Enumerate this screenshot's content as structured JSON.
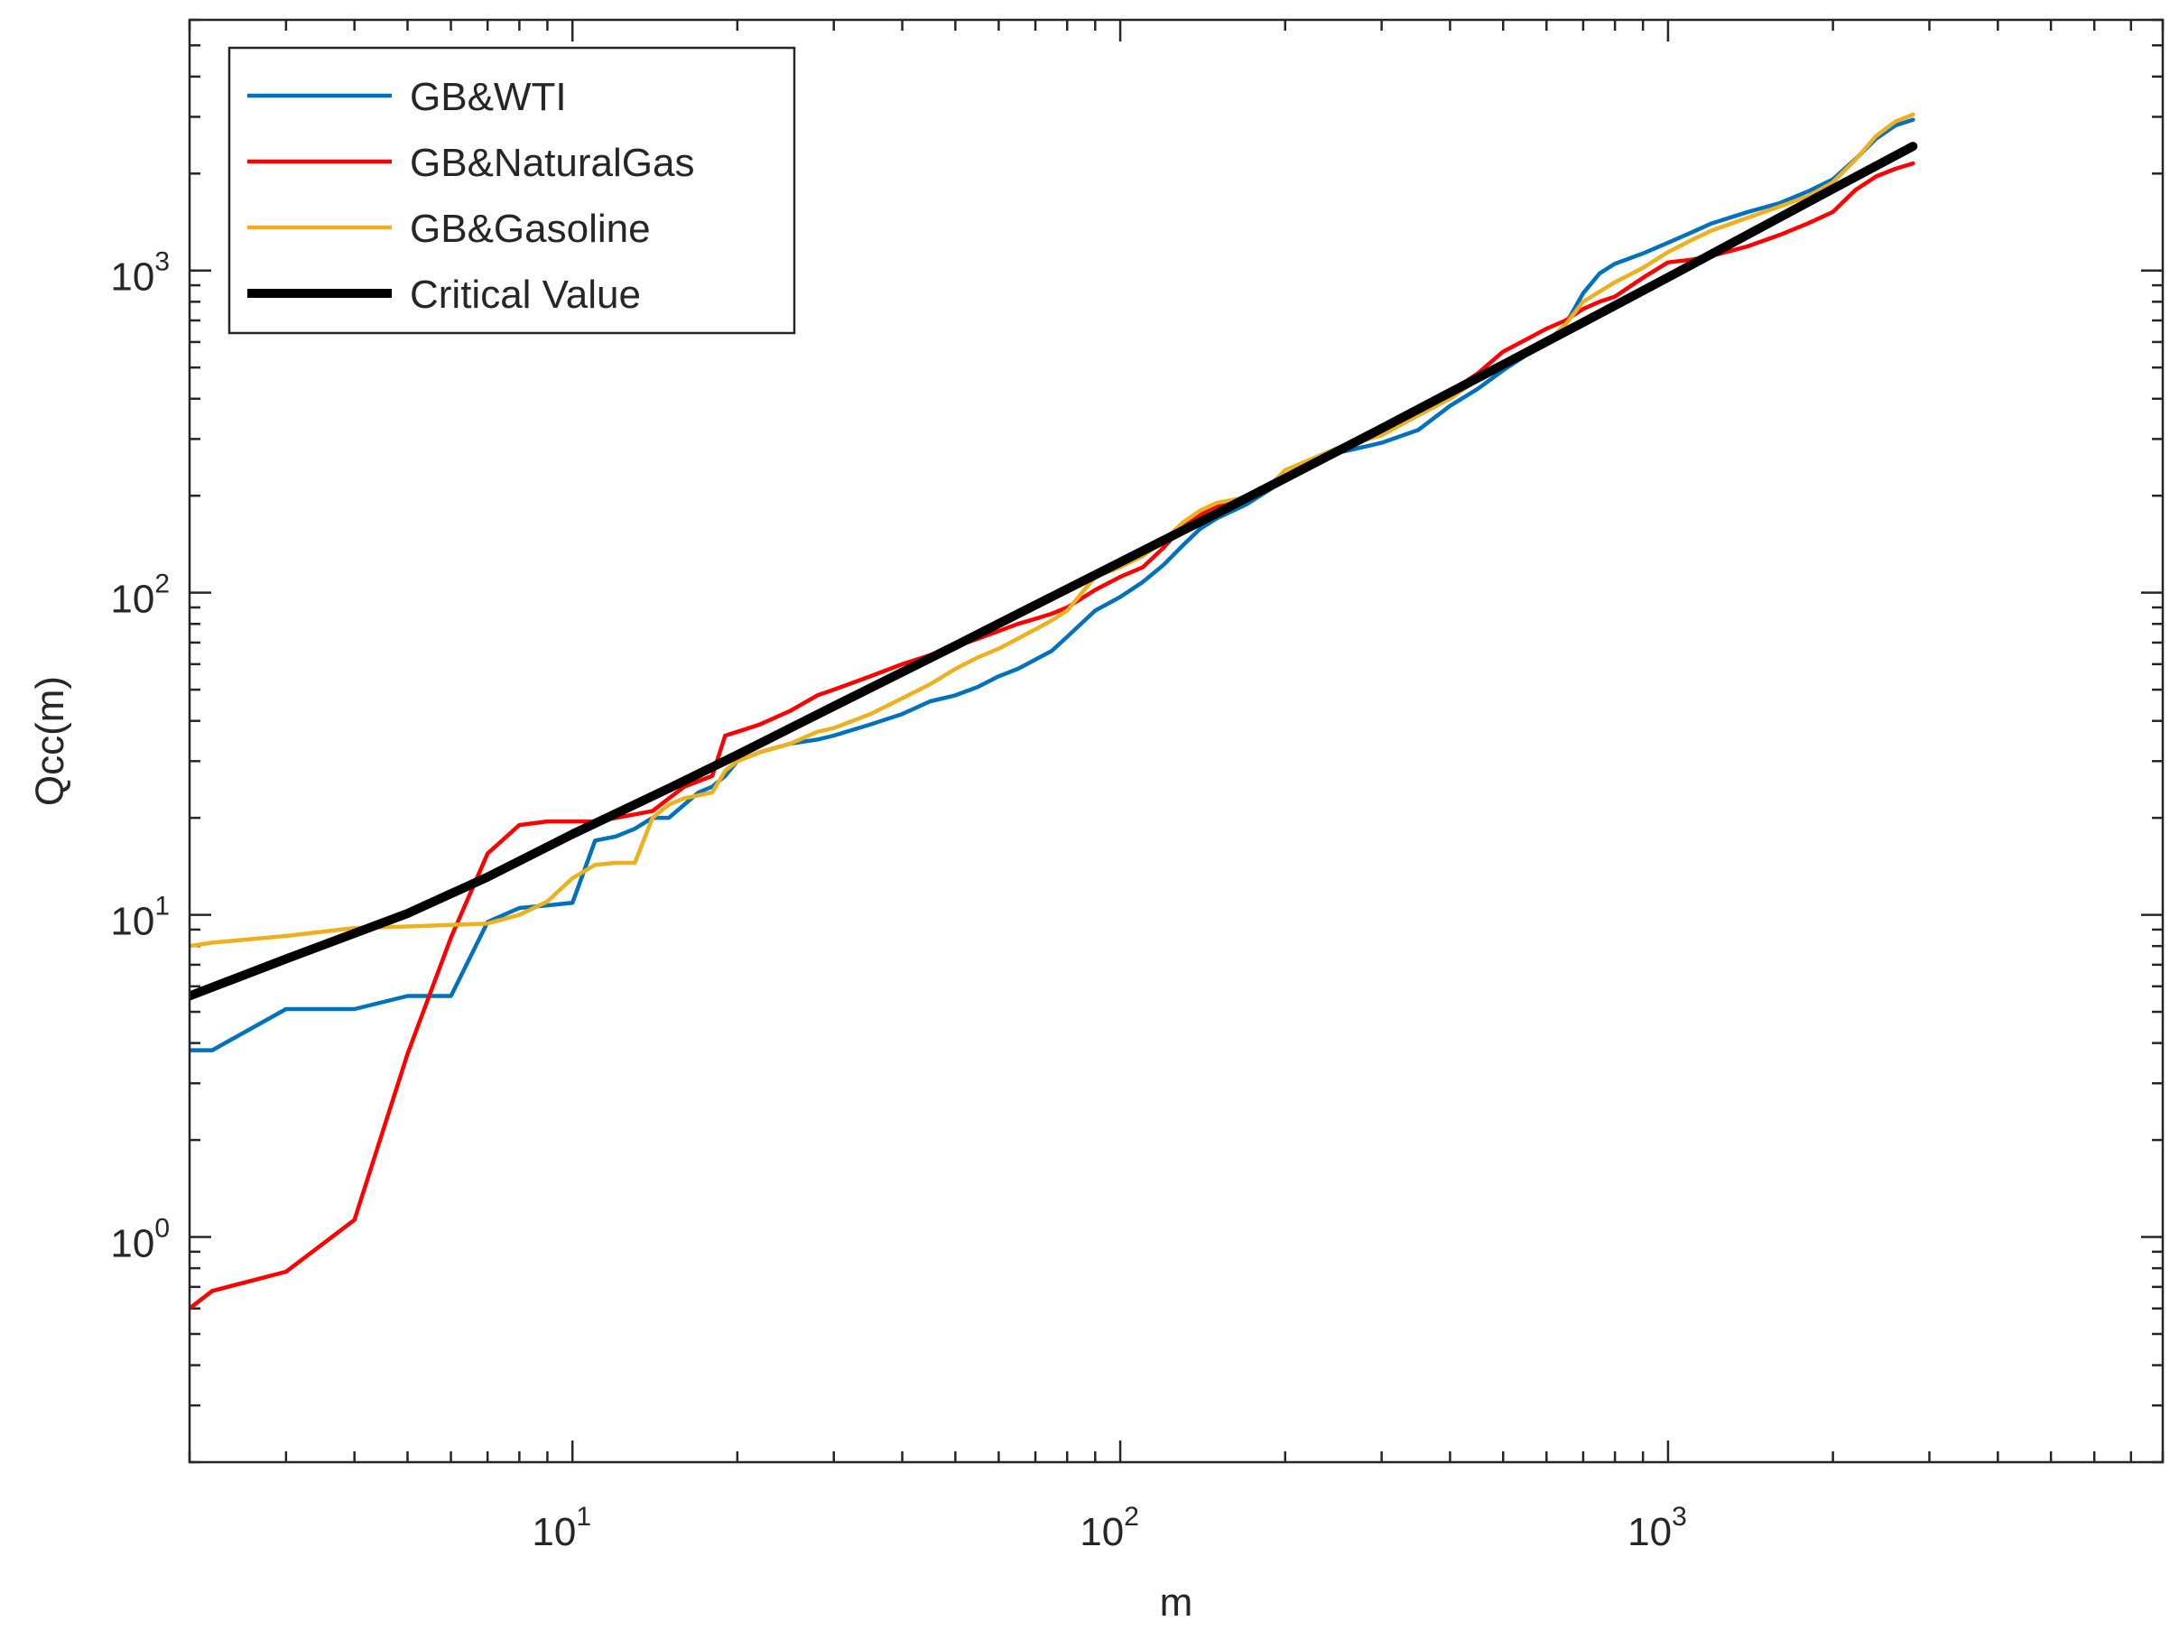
{
  "chart_data": {
    "type": "line",
    "title": "",
    "xlabel": "m",
    "ylabel": "Qcc(m)",
    "xscale": "log",
    "yscale": "log",
    "xlim": [
      2,
      8000
    ],
    "ylim": [
      0.2,
      6000
    ],
    "x_ticks": [
      {
        "value": 10,
        "base": "10",
        "exp": "1"
      },
      {
        "value": 100,
        "base": "10",
        "exp": "2"
      },
      {
        "value": 1000,
        "base": "10",
        "exp": "3"
      }
    ],
    "y_ticks": [
      {
        "value": 1,
        "base": "10",
        "exp": "0"
      },
      {
        "value": 10,
        "base": "10",
        "exp": "1"
      },
      {
        "value": 100,
        "base": "10",
        "exp": "2"
      },
      {
        "value": 1000,
        "base": "10",
        "exp": "3"
      }
    ],
    "grid": false,
    "legend_position": "top-left",
    "series": [
      {
        "name": "GB&WTI",
        "color": "#0072BD",
        "points": [
          [
            2,
            3.8
          ],
          [
            2.2,
            3.8
          ],
          [
            3,
            5.1
          ],
          [
            4,
            5.1
          ],
          [
            5,
            5.6
          ],
          [
            6,
            5.6
          ],
          [
            7,
            9.5
          ],
          [
            8,
            10.5
          ],
          [
            9,
            10.7
          ],
          [
            10,
            10.9
          ],
          [
            11,
            17
          ],
          [
            12,
            17.5
          ],
          [
            13,
            18.5
          ],
          [
            14,
            20
          ],
          [
            15,
            20
          ],
          [
            16,
            22
          ],
          [
            17,
            24
          ],
          [
            18,
            25
          ],
          [
            19,
            27
          ],
          [
            20,
            30
          ],
          [
            22,
            32
          ],
          [
            25,
            34
          ],
          [
            28,
            35
          ],
          [
            30,
            36
          ],
          [
            35,
            39
          ],
          [
            40,
            42
          ],
          [
            45,
            46
          ],
          [
            50,
            48
          ],
          [
            55,
            51
          ],
          [
            60,
            55
          ],
          [
            65,
            58
          ],
          [
            70,
            62
          ],
          [
            75,
            66
          ],
          [
            80,
            73
          ],
          [
            90,
            88
          ],
          [
            100,
            97
          ],
          [
            110,
            108
          ],
          [
            120,
            122
          ],
          [
            130,
            140
          ],
          [
            140,
            158
          ],
          [
            150,
            170
          ],
          [
            170,
            188
          ],
          [
            190,
            212
          ],
          [
            200,
            222
          ],
          [
            250,
            272
          ],
          [
            300,
            292
          ],
          [
            350,
            320
          ],
          [
            400,
            380
          ],
          [
            450,
            430
          ],
          [
            500,
            490
          ],
          [
            550,
            545
          ],
          [
            600,
            590
          ],
          [
            650,
            680
          ],
          [
            700,
            850
          ],
          [
            750,
            980
          ],
          [
            800,
            1050
          ],
          [
            900,
            1130
          ],
          [
            1000,
            1220
          ],
          [
            1100,
            1310
          ],
          [
            1200,
            1400
          ],
          [
            1400,
            1520
          ],
          [
            1600,
            1620
          ],
          [
            1800,
            1760
          ],
          [
            2000,
            1920
          ],
          [
            2200,
            2220
          ],
          [
            2400,
            2570
          ],
          [
            2600,
            2820
          ],
          [
            2800,
            2940
          ]
        ]
      },
      {
        "name": "GB&NaturalGas",
        "color": "#FF0000",
        "points": [
          [
            2,
            0.6
          ],
          [
            2.2,
            0.68
          ],
          [
            3,
            0.78
          ],
          [
            4,
            1.13
          ],
          [
            5,
            3.7
          ],
          [
            6,
            8.5
          ],
          [
            7,
            15.5
          ],
          [
            8,
            19
          ],
          [
            9,
            19.5
          ],
          [
            10,
            19.5
          ],
          [
            11,
            19.5
          ],
          [
            12,
            20
          ],
          [
            13,
            20.5
          ],
          [
            14,
            21
          ],
          [
            15,
            23
          ],
          [
            16,
            25
          ],
          [
            17,
            26
          ],
          [
            18,
            27
          ],
          [
            19,
            36
          ],
          [
            20,
            37
          ],
          [
            22,
            39
          ],
          [
            25,
            43
          ],
          [
            28,
            48
          ],
          [
            30,
            50
          ],
          [
            35,
            55
          ],
          [
            40,
            60
          ],
          [
            45,
            64
          ],
          [
            50,
            68
          ],
          [
            55,
            72
          ],
          [
            60,
            76
          ],
          [
            65,
            80
          ],
          [
            70,
            83
          ],
          [
            75,
            86
          ],
          [
            80,
            90
          ],
          [
            90,
            102
          ],
          [
            100,
            112
          ],
          [
            110,
            120
          ],
          [
            120,
            138
          ],
          [
            130,
            160
          ],
          [
            140,
            175
          ],
          [
            150,
            186
          ],
          [
            170,
            198
          ],
          [
            190,
            215
          ],
          [
            200,
            225
          ],
          [
            250,
            278
          ],
          [
            300,
            318
          ],
          [
            350,
            370
          ],
          [
            400,
            420
          ],
          [
            450,
            480
          ],
          [
            500,
            560
          ],
          [
            550,
            610
          ],
          [
            600,
            660
          ],
          [
            650,
            700
          ],
          [
            700,
            760
          ],
          [
            750,
            800
          ],
          [
            800,
            830
          ],
          [
            900,
            950
          ],
          [
            1000,
            1060
          ],
          [
            1100,
            1080
          ],
          [
            1200,
            1110
          ],
          [
            1400,
            1190
          ],
          [
            1600,
            1290
          ],
          [
            1800,
            1400
          ],
          [
            2000,
            1520
          ],
          [
            2200,
            1780
          ],
          [
            2400,
            1960
          ],
          [
            2600,
            2070
          ],
          [
            2800,
            2150
          ]
        ]
      },
      {
        "name": "GB&Gasoline",
        "color": "#EDB120",
        "points": [
          [
            2,
            8.0
          ],
          [
            2.2,
            8.2
          ],
          [
            3,
            8.6
          ],
          [
            4,
            9.1
          ],
          [
            5,
            9.2
          ],
          [
            6,
            9.3
          ],
          [
            7,
            9.4
          ],
          [
            8,
            10
          ],
          [
            9,
            11
          ],
          [
            10,
            13
          ],
          [
            11,
            14.3
          ],
          [
            12,
            14.5
          ],
          [
            13,
            14.5
          ],
          [
            14,
            20
          ],
          [
            15,
            22
          ],
          [
            16,
            23
          ],
          [
            17,
            23.5
          ],
          [
            18,
            24
          ],
          [
            19,
            28
          ],
          [
            20,
            30
          ],
          [
            22,
            32
          ],
          [
            25,
            34
          ],
          [
            28,
            37
          ],
          [
            30,
            38
          ],
          [
            35,
            42
          ],
          [
            40,
            47
          ],
          [
            45,
            52
          ],
          [
            50,
            58
          ],
          [
            55,
            63
          ],
          [
            60,
            67
          ],
          [
            65,
            72
          ],
          [
            70,
            77
          ],
          [
            75,
            82
          ],
          [
            80,
            88
          ],
          [
            90,
            112
          ],
          [
            100,
            120
          ],
          [
            110,
            130
          ],
          [
            120,
            145
          ],
          [
            130,
            165
          ],
          [
            140,
            180
          ],
          [
            150,
            190
          ],
          [
            170,
            198
          ],
          [
            190,
            220
          ],
          [
            200,
            240
          ],
          [
            250,
            282
          ],
          [
            300,
            308
          ],
          [
            350,
            355
          ],
          [
            400,
            400
          ],
          [
            450,
            460
          ],
          [
            500,
            510
          ],
          [
            550,
            560
          ],
          [
            600,
            600
          ],
          [
            650,
            680
          ],
          [
            700,
            800
          ],
          [
            750,
            860
          ],
          [
            800,
            920
          ],
          [
            900,
            1020
          ],
          [
            1000,
            1140
          ],
          [
            1100,
            1240
          ],
          [
            1200,
            1330
          ],
          [
            1400,
            1460
          ],
          [
            1600,
            1580
          ],
          [
            1800,
            1700
          ],
          [
            2000,
            1880
          ],
          [
            2200,
            2210
          ],
          [
            2400,
            2620
          ],
          [
            2600,
            2900
          ],
          [
            2800,
            3050
          ]
        ]
      },
      {
        "name": "Critical Value",
        "color": "#000000",
        "points": [
          [
            2,
            5.6
          ],
          [
            3,
            7.3
          ],
          [
            5,
            10.1
          ],
          [
            7,
            13.1
          ],
          [
            10,
            17.8
          ],
          [
            15,
            24.7
          ],
          [
            20,
            31.4
          ],
          [
            30,
            44.4
          ],
          [
            50,
            68.5
          ],
          [
            70,
            91.6
          ],
          [
            100,
            124.3
          ],
          [
            150,
            176.3
          ],
          [
            200,
            226.5
          ],
          [
            300,
            323.5
          ],
          [
            500,
            510.3
          ],
          [
            700,
            690.1
          ],
          [
            1000,
            952.4
          ],
          [
            1500,
            1378
          ],
          [
            2000,
            1792
          ],
          [
            2800,
            2430
          ]
        ]
      }
    ]
  }
}
